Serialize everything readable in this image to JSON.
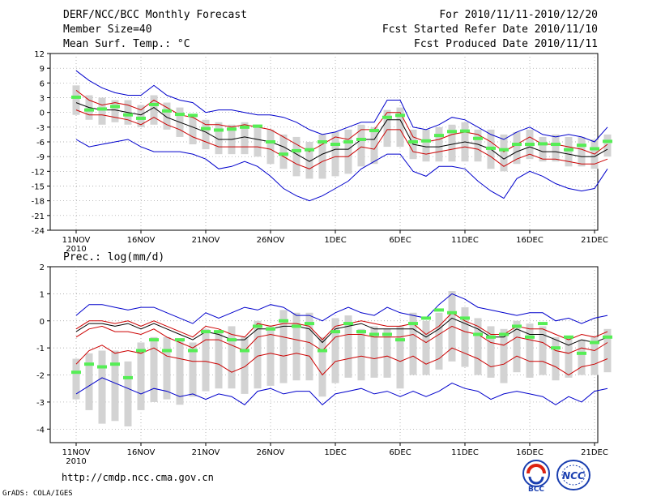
{
  "header": {
    "title": "DERF/NCC/BCC Monthly Forecast",
    "member_size": "Member Size=40",
    "variable1": "Mean Surf. Temp.: °C",
    "period": "For 2010/11/11-2010/12/20",
    "started": "Fcst Started Refer Date 2010/11/10",
    "produced": "Fcst Produced Date 2010/11/11"
  },
  "footer": {
    "url": "http://cmdp.ncc.cma.gov.cn",
    "grads": "GrADS: COLA/IGES",
    "logo_bcc": "BCC",
    "logo_ncc": "NCC"
  },
  "colors": {
    "mean": "#000000",
    "spread": "#cc0000",
    "extreme": "#0000cc",
    "box": "#d3d3d3",
    "median": "#55ee55",
    "grid": "#999999"
  },
  "chart_data": [
    {
      "type": "line",
      "title": "Mean Surf. Temp.: °C",
      "x_tick_labels": [
        "11NOV",
        "16NOV",
        "21NOV",
        "26NOV",
        "1DEC",
        "6DEC",
        "11DEC",
        "16DEC",
        "21DEC"
      ],
      "x_year_label": "2010",
      "ylim": [
        -24,
        12
      ],
      "yticks": [
        -24,
        -21,
        -18,
        -15,
        -12,
        -9,
        -6,
        -3,
        0,
        3,
        6,
        9,
        12
      ],
      "series": [
        {
          "name": "max",
          "values": [
            8.5,
            6.5,
            5,
            4,
            3.5,
            3.5,
            5.5,
            3.5,
            2.5,
            2,
            0,
            0.5,
            0.5,
            0,
            -0.5,
            -0.5,
            -1,
            -2,
            -3.5,
            -4.5,
            -4,
            -3,
            -2,
            -2,
            2.5,
            2.5,
            -3,
            -3.5,
            -2.5,
            -1,
            -1.5,
            -3,
            -4.5,
            -5.5,
            -4,
            -3,
            -4.5,
            -5,
            -4.5,
            -5,
            -6,
            -3
          ]
        },
        {
          "name": "upper",
          "values": [
            4.5,
            2.5,
            1.5,
            2,
            1.5,
            0.5,
            2.5,
            1,
            -0.5,
            -1,
            -2.5,
            -2.5,
            -3,
            -2.5,
            -3,
            -3.5,
            -5,
            -6.5,
            -8,
            -6.5,
            -5,
            -5.5,
            -3.5,
            -3.5,
            0,
            0,
            -5,
            -6,
            -5.5,
            -4.5,
            -4,
            -4.5,
            -6,
            -8,
            -6.5,
            -5,
            -6.5,
            -6.5,
            -7,
            -7.5,
            -8.5,
            -6.5
          ]
        },
        {
          "name": "mean",
          "values": [
            2,
            1,
            0.5,
            0.5,
            0,
            -0.5,
            1,
            -1,
            -2,
            -3,
            -4,
            -5.5,
            -5.5,
            -5,
            -5.5,
            -6,
            -7,
            -8.5,
            -10,
            -8.5,
            -7.5,
            -7.5,
            -5.5,
            -5.5,
            -1.5,
            -1.5,
            -6.5,
            -7,
            -7,
            -6.5,
            -6,
            -6.5,
            -7.5,
            -9.5,
            -8,
            -7,
            -8,
            -8,
            -8.5,
            -9,
            -9,
            -7.5
          ]
        },
        {
          "name": "lower",
          "values": [
            0.5,
            -0.5,
            -0.5,
            -1,
            -1.5,
            -2.5,
            -1,
            -2.5,
            -3.5,
            -5,
            -6,
            -7,
            -7,
            -7,
            -7,
            -7.5,
            -9,
            -10.5,
            -11.5,
            -10,
            -9,
            -9,
            -7,
            -7.5,
            -3.5,
            -3.5,
            -8,
            -8.5,
            -8,
            -7.5,
            -7,
            -7.5,
            -9,
            -11,
            -9.5,
            -8.5,
            -9.5,
            -9.5,
            -10,
            -10.5,
            -10.5,
            -9.5
          ]
        },
        {
          "name": "min",
          "values": [
            -5.5,
            -7,
            -6.5,
            -6,
            -5.5,
            -7,
            -8,
            -8,
            -8,
            -8.5,
            -9.5,
            -11.5,
            -11,
            -10,
            -11,
            -13,
            -15.5,
            -17,
            -18,
            -17,
            -15.5,
            -14,
            -11.5,
            -10,
            -8.5,
            -8.5,
            -12,
            -13,
            -11,
            -11,
            -11.5,
            -14,
            -16,
            -17.5,
            -13.5,
            -12,
            -13,
            -14.5,
            -15.5,
            -16,
            -15.5,
            -11.5
          ]
        }
      ],
      "boxes": [
        {
          "lo": -0.5,
          "hi": 5.5,
          "median": 3.1
        },
        {
          "lo": -1.5,
          "hi": 3.5,
          "median": 0.5
        },
        {
          "lo": -2.5,
          "hi": 3,
          "median": 0.7
        },
        {
          "lo": -2,
          "hi": 2.5,
          "median": 1.2
        },
        {
          "lo": -2.5,
          "hi": 2.5,
          "median": -0.5
        },
        {
          "lo": -3,
          "hi": 1.5,
          "median": -1.2
        },
        {
          "lo": -2.5,
          "hi": 3.5,
          "median": 1.6
        },
        {
          "lo": -3.5,
          "hi": 2,
          "median": 0.3
        },
        {
          "lo": -5,
          "hi": 1,
          "median": -0.4
        },
        {
          "lo": -6.5,
          "hi": -0.5,
          "median": -0.6
        },
        {
          "lo": -7.5,
          "hi": -1.5,
          "median": -3.3
        },
        {
          "lo": -8.5,
          "hi": -2,
          "median": -3.6
        },
        {
          "lo": -8.5,
          "hi": -2.5,
          "median": -3.4
        },
        {
          "lo": -8.5,
          "hi": -2,
          "median": -3
        },
        {
          "lo": -9,
          "hi": -2.5,
          "median": -2.8
        },
        {
          "lo": -10.5,
          "hi": -3.5,
          "median": -6
        },
        {
          "lo": -11.5,
          "hi": -4.5,
          "median": -8.5
        },
        {
          "lo": -13,
          "hi": -5,
          "median": -7.8
        },
        {
          "lo": -13.5,
          "hi": -6,
          "median": -7.6
        },
        {
          "lo": -13.5,
          "hi": -4.5,
          "median": -6
        },
        {
          "lo": -13,
          "hi": -4,
          "median": -6.5
        },
        {
          "lo": -12.5,
          "hi": -3.5,
          "median": -6
        },
        {
          "lo": -11,
          "hi": -2.5,
          "median": -5.5
        },
        {
          "lo": -10.5,
          "hi": -3,
          "median": -3.7
        },
        {
          "lo": -7,
          "hi": 0.5,
          "median": -1
        },
        {
          "lo": -7,
          "hi": 1,
          "median": -0.6
        },
        {
          "lo": -9.5,
          "hi": -3.5,
          "median": -6
        },
        {
          "lo": -10,
          "hi": -3.5,
          "median": -5.8
        },
        {
          "lo": -10,
          "hi": -3,
          "median": -4.7
        },
        {
          "lo": -10,
          "hi": -2.5,
          "median": -3.9
        },
        {
          "lo": -10,
          "hi": -2,
          "median": -3.8
        },
        {
          "lo": -10,
          "hi": -3.5,
          "median": -5.3
        },
        {
          "lo": -11.5,
          "hi": -3.5,
          "median": -7.3
        },
        {
          "lo": -12,
          "hi": -4.5,
          "median": -7.6
        },
        {
          "lo": -10.5,
          "hi": -4,
          "median": -6.5
        },
        {
          "lo": -9.5,
          "hi": -3.5,
          "median": -6.5
        },
        {
          "lo": -10,
          "hi": -5,
          "median": -6.4
        },
        {
          "lo": -10,
          "hi": -4.5,
          "median": -6.5
        },
        {
          "lo": -11,
          "hi": -5,
          "median": -7.6
        },
        {
          "lo": -11,
          "hi": -5,
          "median": -6.7
        },
        {
          "lo": -11.5,
          "hi": -5.5,
          "median": -7.4
        },
        {
          "lo": -9,
          "hi": -4.5,
          "median": -5.9
        }
      ]
    },
    {
      "type": "line",
      "title": "Prec.: log(mm/d)",
      "x_tick_labels": [
        "11NOV",
        "16NOV",
        "21NOV",
        "26NOV",
        "1DEC",
        "6DEC",
        "11DEC",
        "16DEC",
        "21DEC"
      ],
      "x_year_label": "2010",
      "ylim": [
        -4.5,
        2
      ],
      "yticks": [
        -4,
        -3,
        -2,
        -1,
        0,
        1,
        2
      ],
      "series": [
        {
          "name": "max",
          "values": [
            0.2,
            0.6,
            0.6,
            0.5,
            0.4,
            0.5,
            0.5,
            0.3,
            0.1,
            -0.1,
            0.3,
            0.1,
            0.3,
            0.5,
            0.4,
            0.6,
            0.5,
            0.2,
            0.2,
            0,
            0.3,
            0.5,
            0.3,
            0.2,
            0.5,
            0.3,
            0.2,
            0.1,
            0.6,
            1,
            0.8,
            0.5,
            0.4,
            0.3,
            0.2,
            0.3,
            0.3,
            0,
            0.1,
            -0.1,
            0.1,
            0.2
          ]
        },
        {
          "name": "upper",
          "values": [
            -0.3,
            0,
            0,
            -0.1,
            0,
            -0.2,
            0,
            -0.2,
            -0.4,
            -0.6,
            -0.2,
            -0.3,
            -0.5,
            -0.6,
            -0.1,
            -0.2,
            -0.1,
            -0.1,
            -0.2,
            -0.7,
            -0.2,
            -0.1,
            0,
            -0.1,
            -0.2,
            -0.2,
            -0.1,
            -0.5,
            -0.2,
            0.3,
            0,
            -0.2,
            -0.5,
            -0.5,
            -0.2,
            -0.3,
            -0.3,
            -0.5,
            -0.7,
            -0.5,
            -0.6,
            -0.4
          ]
        },
        {
          "name": "mean",
          "values": [
            -0.4,
            -0.1,
            -0.1,
            -0.2,
            -0.1,
            -0.3,
            -0.1,
            -0.3,
            -0.5,
            -0.7,
            -0.4,
            -0.5,
            -0.7,
            -0.7,
            -0.3,
            -0.3,
            -0.2,
            -0.2,
            -0.3,
            -0.8,
            -0.3,
            -0.2,
            -0.1,
            -0.3,
            -0.3,
            -0.3,
            -0.3,
            -0.6,
            -0.3,
            0.1,
            -0.1,
            -0.3,
            -0.6,
            -0.6,
            -0.3,
            -0.5,
            -0.5,
            -0.7,
            -0.9,
            -0.7,
            -0.8,
            -0.6
          ]
        },
        {
          "name": "lower",
          "values": [
            -0.6,
            -0.3,
            -0.2,
            -0.4,
            -0.4,
            -0.5,
            -0.3,
            -0.6,
            -0.8,
            -1,
            -0.7,
            -0.7,
            -0.9,
            -1.1,
            -0.6,
            -0.5,
            -0.6,
            -0.7,
            -0.8,
            -1.1,
            -0.6,
            -0.5,
            -0.5,
            -0.6,
            -0.6,
            -0.6,
            -0.5,
            -0.8,
            -0.5,
            -0.2,
            -0.4,
            -0.5,
            -0.8,
            -0.9,
            -0.6,
            -0.7,
            -0.8,
            -1.1,
            -1.2,
            -1,
            -1.1,
            -0.8
          ]
        },
        {
          "name": "spread-low",
          "values": [
            -1.6,
            -1.1,
            -0.9,
            -1.2,
            -1.1,
            -1.2,
            -1,
            -1.3,
            -1.4,
            -1.5,
            -1.5,
            -1.6,
            -1.9,
            -1.7,
            -1.3,
            -1.2,
            -1.3,
            -1.2,
            -1.3,
            -2,
            -1.5,
            -1.4,
            -1.3,
            -1.4,
            -1.3,
            -1.5,
            -1.3,
            -1.6,
            -1.4,
            -1,
            -1.2,
            -1.4,
            -1.7,
            -1.6,
            -1.3,
            -1.5,
            -1.5,
            -1.7,
            -2,
            -1.7,
            -1.6,
            -1.4
          ]
        },
        {
          "name": "min",
          "values": [
            -2.7,
            -2.4,
            -2.1,
            -2.3,
            -2.5,
            -2.7,
            -2.5,
            -2.6,
            -2.8,
            -2.7,
            -2.9,
            -2.7,
            -2.8,
            -3.1,
            -2.6,
            -2.5,
            -2.7,
            -2.6,
            -2.6,
            -3.1,
            -2.7,
            -2.6,
            -2.5,
            -2.7,
            -2.6,
            -2.8,
            -2.6,
            -2.8,
            -2.6,
            -2.3,
            -2.5,
            -2.6,
            -2.9,
            -2.7,
            -2.6,
            -2.7,
            -2.8,
            -3.1,
            -2.8,
            -3,
            -2.6,
            -2.5
          ]
        }
      ],
      "boxes": [
        {
          "lo": -2.9,
          "hi": -1.4,
          "median": -1.9
        },
        {
          "lo": -3.3,
          "hi": -1.2,
          "median": -1.6
        },
        {
          "lo": -3.8,
          "hi": -1.1,
          "median": -1.7
        },
        {
          "lo": -3.7,
          "hi": -1.1,
          "median": -1.6
        },
        {
          "lo": -3.9,
          "hi": -1.5,
          "median": -2.1
        },
        {
          "lo": -3.3,
          "hi": -0.8,
          "median": -1.1
        },
        {
          "lo": -3,
          "hi": -0.6,
          "median": -0.7
        },
        {
          "lo": -2.9,
          "hi": -0.6,
          "median": -1.1
        },
        {
          "lo": -3.1,
          "hi": -0.7,
          "median": -0.7
        },
        {
          "lo": -2.8,
          "hi": -0.8,
          "median": -1.1
        },
        {
          "lo": -2.6,
          "hi": -0.3,
          "median": -0.4
        },
        {
          "lo": -2.5,
          "hi": -0.4,
          "median": -0.4
        },
        {
          "lo": -2.5,
          "hi": -0.2,
          "median": -0.7
        },
        {
          "lo": -2.7,
          "hi": -0.6,
          "median": -1.1
        },
        {
          "lo": -2.5,
          "hi": 0,
          "median": -0.2
        },
        {
          "lo": -2.4,
          "hi": -0.2,
          "median": -0.3
        },
        {
          "lo": -2.3,
          "hi": 0.4,
          "median": 0
        },
        {
          "lo": -2.2,
          "hi": 0.3,
          "median": -0.2
        },
        {
          "lo": -2.2,
          "hi": 0.3,
          "median": -0.1
        },
        {
          "lo": -2.8,
          "hi": -0.6,
          "median": -1.1
        },
        {
          "lo": -2.3,
          "hi": 0.1,
          "median": -0.4
        },
        {
          "lo": -2.1,
          "hi": 0.2,
          "median": -0.1
        },
        {
          "lo": -2.2,
          "hi": -0.3,
          "median": -0.4
        },
        {
          "lo": -2.1,
          "hi": -0.2,
          "median": -0.5
        },
        {
          "lo": -2.1,
          "hi": -0.3,
          "median": -0.5
        },
        {
          "lo": -2.5,
          "hi": -0.2,
          "median": -0.7
        },
        {
          "lo": -2,
          "hi": 0.3,
          "median": -0.1
        },
        {
          "lo": -2,
          "hi": 0,
          "median": 0.1
        },
        {
          "lo": -1.8,
          "hi": 0.3,
          "median": 0.4
        },
        {
          "lo": -1.5,
          "hi": 1.1,
          "median": 0.3
        },
        {
          "lo": -1.7,
          "hi": 0.5,
          "median": 0.1
        },
        {
          "lo": -2,
          "hi": 0.1,
          "median": -0.5
        },
        {
          "lo": -2.1,
          "hi": -0.2,
          "median": -0.6
        },
        {
          "lo": -2.3,
          "hi": -0.3,
          "median": -0.5
        },
        {
          "lo": -1.9,
          "hi": 0,
          "median": -0.2
        },
        {
          "lo": -2.1,
          "hi": -0.1,
          "median": -0.6
        },
        {
          "lo": -2,
          "hi": -0.2,
          "median": -0.1
        },
        {
          "lo": -2.2,
          "hi": -0.6,
          "median": -1
        },
        {
          "lo": -2.1,
          "hi": -0.6,
          "median": -0.6
        },
        {
          "lo": -2,
          "hi": -0.7,
          "median": -1.2
        },
        {
          "lo": -2,
          "hi": -0.6,
          "median": -0.8
        },
        {
          "lo": -1.9,
          "hi": -0.3,
          "median": -0.6
        }
      ]
    }
  ]
}
